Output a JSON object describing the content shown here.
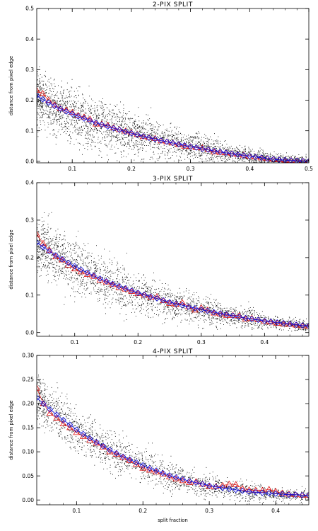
{
  "chart_data": [
    {
      "type": "scatter",
      "title": "2-PIX SPLIT",
      "xlabel": "",
      "ylabel": "distance from pixel edge",
      "xlim": [
        0.04,
        0.5
      ],
      "ylim": [
        -0.005,
        0.5
      ],
      "xticks": [
        0.1,
        0.2,
        0.3,
        0.4,
        0.5
      ],
      "xtick_labels": [
        "0.1",
        "0.2",
        "0.3",
        "0.4",
        "0.5"
      ],
      "yticks": [
        0.0,
        0.1,
        0.2,
        0.3,
        0.4,
        0.5
      ],
      "ytick_labels": [
        "0.0",
        "0.1",
        "0.2",
        "0.3",
        "0.4",
        "0.5"
      ],
      "grid": false,
      "series": [
        {
          "marker": "dot",
          "color": "#000000",
          "x": [],
          "y": [],
          "scatter_model": {
            "curve": "fit",
            "y_scale": 1.0,
            "spread": [
              0.085,
              0.075,
              0.06,
              0.045,
              0.03,
              0.018
            ],
            "count": 3000
          }
        },
        {
          "marker": "diamond",
          "color": "#1010e0",
          "x": [
            0.04,
            0.05,
            0.06,
            0.07,
            0.08,
            0.09,
            0.1,
            0.11,
            0.12,
            0.13,
            0.14,
            0.15,
            0.16,
            0.17,
            0.18,
            0.19,
            0.2,
            0.21,
            0.22,
            0.23,
            0.24,
            0.25,
            0.26,
            0.27,
            0.28,
            0.29,
            0.3,
            0.31,
            0.32,
            0.33,
            0.34,
            0.35,
            0.36,
            0.37,
            0.38,
            0.39,
            0.4,
            0.41,
            0.42,
            0.43,
            0.44,
            0.45,
            0.46,
            0.47,
            0.48,
            0.49,
            0.5
          ],
          "y": [
            0.215,
            0.203,
            0.192,
            0.181,
            0.172,
            0.163,
            0.155,
            0.147,
            0.14,
            0.133,
            0.126,
            0.12,
            0.114,
            0.108,
            0.103,
            0.097,
            0.092,
            0.087,
            0.082,
            0.077,
            0.073,
            0.068,
            0.064,
            0.06,
            0.056,
            0.052,
            0.048,
            0.045,
            0.041,
            0.038,
            0.034,
            0.031,
            0.028,
            0.025,
            0.022,
            0.019,
            0.017,
            0.014,
            0.012,
            0.009,
            0.007,
            0.005,
            0.004,
            0.003,
            0.002,
            0.001,
            0.0
          ]
        },
        {
          "marker": "triangle",
          "color": "#e01010",
          "x": [
            0.04,
            0.05,
            0.06,
            0.07,
            0.08,
            0.09,
            0.1,
            0.11,
            0.12,
            0.13,
            0.14,
            0.15,
            0.16,
            0.17,
            0.18,
            0.19,
            0.2,
            0.21,
            0.22,
            0.23,
            0.24,
            0.25,
            0.26,
            0.27,
            0.28,
            0.29,
            0.3,
            0.31,
            0.32,
            0.33,
            0.34,
            0.35,
            0.36,
            0.37,
            0.38,
            0.39,
            0.4,
            0.41,
            0.42,
            0.43,
            0.44,
            0.45,
            0.46,
            0.47,
            0.48,
            0.49,
            0.5
          ],
          "y": [
            0.232,
            0.222,
            0.2,
            0.185,
            0.173,
            0.168,
            0.16,
            0.15,
            0.145,
            0.138,
            0.122,
            0.122,
            0.118,
            0.11,
            0.104,
            0.099,
            0.094,
            0.088,
            0.081,
            0.078,
            0.075,
            0.067,
            0.064,
            0.06,
            0.055,
            0.049,
            0.048,
            0.045,
            0.044,
            0.038,
            0.031,
            0.029,
            0.028,
            0.025,
            0.022,
            0.02,
            0.017,
            0.014,
            0.011,
            0.009,
            0.007,
            0.005,
            0.004,
            0.003,
            0.002,
            0.001,
            0.0
          ]
        }
      ]
    },
    {
      "type": "scatter",
      "title": "3-PIX SPLIT",
      "xlabel": "",
      "ylabel": "distance from pixel edge",
      "xlim": [
        0.04,
        0.47
      ],
      "ylim": [
        -0.01,
        0.4
      ],
      "xticks": [
        0.1,
        0.2,
        0.3,
        0.4
      ],
      "xtick_labels": [
        "0.1",
        "0.2",
        "0.3",
        "0.4"
      ],
      "yticks": [
        0.0,
        0.1,
        0.2,
        0.3,
        0.4
      ],
      "ytick_labels": [
        "0.0",
        "0.1",
        "0.2",
        "0.3",
        "0.4"
      ],
      "grid": false,
      "series": [
        {
          "marker": "dot",
          "color": "#000000",
          "x": [],
          "y": [],
          "scatter_model": {
            "curve": "fit",
            "y_scale": 1.0,
            "spread": [
              0.07,
              0.06,
              0.045,
              0.035,
              0.025,
              0.015
            ],
            "count": 2500
          }
        },
        {
          "marker": "diamond",
          "color": "#1010e0",
          "x": [
            0.04,
            0.05,
            0.06,
            0.07,
            0.08,
            0.09,
            0.1,
            0.11,
            0.12,
            0.13,
            0.14,
            0.15,
            0.16,
            0.17,
            0.18,
            0.19,
            0.2,
            0.21,
            0.22,
            0.23,
            0.24,
            0.25,
            0.26,
            0.27,
            0.28,
            0.29,
            0.3,
            0.31,
            0.32,
            0.33,
            0.34,
            0.35,
            0.36,
            0.37,
            0.38,
            0.39,
            0.4,
            0.41,
            0.42,
            0.43,
            0.44,
            0.45,
            0.46,
            0.47
          ],
          "y": [
            0.24,
            0.228,
            0.217,
            0.206,
            0.196,
            0.186,
            0.177,
            0.168,
            0.16,
            0.152,
            0.144,
            0.137,
            0.13,
            0.124,
            0.118,
            0.112,
            0.106,
            0.101,
            0.096,
            0.091,
            0.086,
            0.081,
            0.077,
            0.073,
            0.069,
            0.065,
            0.061,
            0.058,
            0.054,
            0.051,
            0.048,
            0.045,
            0.042,
            0.039,
            0.036,
            0.034,
            0.031,
            0.029,
            0.027,
            0.025,
            0.023,
            0.021,
            0.019,
            0.018
          ]
        },
        {
          "marker": "triangle",
          "color": "#e01010",
          "x": [
            0.04,
            0.05,
            0.06,
            0.07,
            0.08,
            0.09,
            0.1,
            0.11,
            0.12,
            0.13,
            0.14,
            0.15,
            0.16,
            0.17,
            0.18,
            0.19,
            0.2,
            0.21,
            0.22,
            0.23,
            0.24,
            0.25,
            0.26,
            0.27,
            0.28,
            0.29,
            0.3,
            0.31,
            0.32,
            0.33,
            0.34,
            0.35,
            0.36,
            0.37,
            0.38,
            0.39,
            0.4,
            0.41,
            0.42,
            0.43,
            0.44,
            0.45,
            0.46,
            0.47
          ],
          "y": [
            0.262,
            0.238,
            0.22,
            0.202,
            0.194,
            0.18,
            0.17,
            0.162,
            0.155,
            0.15,
            0.14,
            0.135,
            0.128,
            0.12,
            0.116,
            0.11,
            0.104,
            0.1,
            0.094,
            0.096,
            0.085,
            0.078,
            0.075,
            0.08,
            0.069,
            0.06,
            0.066,
            0.06,
            0.052,
            0.05,
            0.046,
            0.046,
            0.045,
            0.036,
            0.038,
            0.034,
            0.03,
            0.028,
            0.025,
            0.023,
            0.022,
            0.02,
            0.018,
            0.017
          ]
        }
      ]
    },
    {
      "type": "scatter",
      "title": "4-PIX SPLIT",
      "xlabel": "split fraction",
      "ylabel": "distance from pixel edge",
      "xlim": [
        0.04,
        0.45
      ],
      "ylim": [
        -0.01,
        0.3
      ],
      "xticks": [
        0.1,
        0.2,
        0.3,
        0.4
      ],
      "xtick_labels": [
        "0.1",
        "0.2",
        "0.3",
        "0.4"
      ],
      "yticks": [
        0.0,
        0.05,
        0.1,
        0.15,
        0.2,
        0.25,
        0.3
      ],
      "ytick_labels": [
        "0.00",
        "0.05",
        "0.10",
        "0.15",
        "0.20",
        "0.25",
        "0.30"
      ],
      "grid": false,
      "series": [
        {
          "marker": "dot",
          "color": "#000000",
          "x": [],
          "y": [],
          "scatter_model": {
            "curve": "fit",
            "y_scale": 1.0,
            "spread": [
              0.045,
              0.04,
              0.032,
              0.025,
              0.018,
              0.012
            ],
            "count": 2000
          }
        },
        {
          "marker": "diamond",
          "color": "#1010e0",
          "x": [
            0.04,
            0.05,
            0.06,
            0.07,
            0.08,
            0.09,
            0.1,
            0.11,
            0.12,
            0.13,
            0.14,
            0.15,
            0.16,
            0.17,
            0.18,
            0.19,
            0.2,
            0.21,
            0.22,
            0.23,
            0.24,
            0.25,
            0.26,
            0.27,
            0.28,
            0.29,
            0.3,
            0.31,
            0.32,
            0.33,
            0.34,
            0.35,
            0.36,
            0.37,
            0.38,
            0.39,
            0.4,
            0.41,
            0.42,
            0.43,
            0.44,
            0.45
          ],
          "y": [
            0.212,
            0.2,
            0.188,
            0.177,
            0.166,
            0.156,
            0.146,
            0.137,
            0.128,
            0.12,
            0.112,
            0.104,
            0.097,
            0.09,
            0.084,
            0.078,
            0.072,
            0.066,
            0.061,
            0.056,
            0.051,
            0.047,
            0.043,
            0.039,
            0.036,
            0.033,
            0.03,
            0.027,
            0.025,
            0.023,
            0.021,
            0.019,
            0.017,
            0.016,
            0.015,
            0.014,
            0.013,
            0.012,
            0.011,
            0.011,
            0.01,
            0.01
          ]
        },
        {
          "marker": "triangle",
          "color": "#e01010",
          "x": [
            0.04,
            0.05,
            0.06,
            0.07,
            0.08,
            0.09,
            0.1,
            0.11,
            0.12,
            0.13,
            0.14,
            0.15,
            0.16,
            0.17,
            0.18,
            0.19,
            0.2,
            0.21,
            0.22,
            0.23,
            0.24,
            0.25,
            0.26,
            0.27,
            0.28,
            0.29,
            0.3,
            0.31,
            0.32,
            0.33,
            0.34,
            0.35,
            0.36,
            0.37,
            0.38,
            0.39,
            0.4,
            0.41,
            0.42,
            0.43,
            0.44,
            0.45
          ],
          "y": [
            0.232,
            0.2,
            0.18,
            0.17,
            0.158,
            0.15,
            0.14,
            0.132,
            0.124,
            0.118,
            0.11,
            0.1,
            0.095,
            0.088,
            0.082,
            0.074,
            0.066,
            0.062,
            0.058,
            0.054,
            0.048,
            0.044,
            0.04,
            0.036,
            0.038,
            0.033,
            0.028,
            0.028,
            0.03,
            0.033,
            0.032,
            0.024,
            0.021,
            0.02,
            0.02,
            0.022,
            0.018,
            0.014,
            0.012,
            0.011,
            0.01,
            0.01
          ]
        }
      ]
    }
  ]
}
